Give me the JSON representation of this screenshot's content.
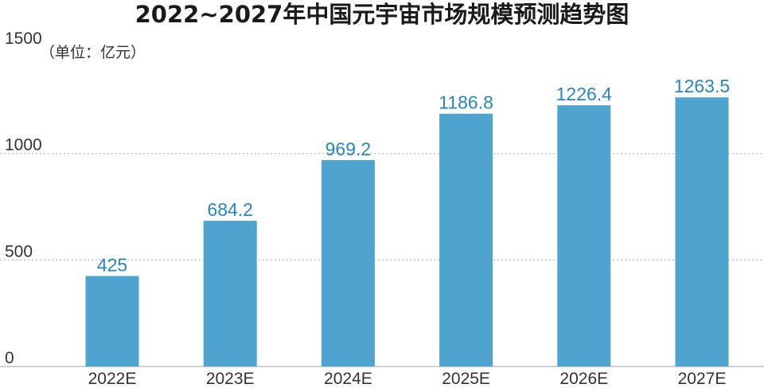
{
  "chart_data": {
    "type": "bar",
    "title": "2022~2027年中国元宇宙市场规模预测趋势图",
    "unit_label": "（单位：亿元）",
    "categories": [
      "2022E",
      "2023E",
      "2024E",
      "2025E",
      "2026E",
      "2027E"
    ],
    "values": [
      425,
      684.2,
      969.2,
      1186.8,
      1226.4,
      1263.5
    ],
    "data_labels": [
      "425",
      "684.2",
      "969.2",
      "1186.8",
      "1226.4",
      "1263.5"
    ],
    "ylim": [
      0,
      1500
    ],
    "yticks": [
      0,
      500,
      1000,
      1500
    ],
    "ytick_labels": [
      "0",
      "500",
      "1000",
      "1500"
    ],
    "grid": true,
    "bar_color": "#4fa4cf",
    "label_color": "#2a86b8",
    "grid_color": "#b5b5b5"
  }
}
